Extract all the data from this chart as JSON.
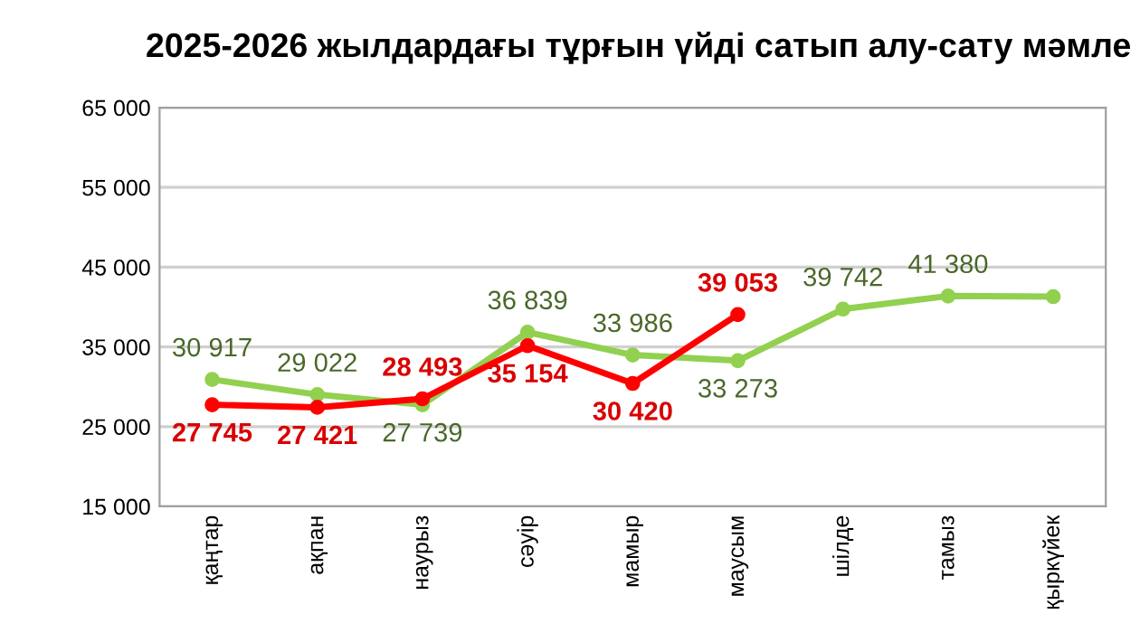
{
  "chart_data": {
    "type": "line",
    "title": "2025-2026 жылдардағы тұрғын үйді сатып алу-сату мәмле",
    "categories": [
      "қаңтар",
      "ақпан",
      "наурыз",
      "сәуір",
      "мамыр",
      "маусым",
      "шілде",
      "тамыз",
      "қыркүйек"
    ],
    "series": [
      {
        "color": "#92d050",
        "values": [
          30917,
          29022,
          27739,
          36839,
          33986,
          33273,
          39742,
          41380,
          41300
        ],
        "value_labels": [
          "30 917",
          "29 022",
          "27 739",
          "36 839",
          "33 986",
          "33 273",
          "39 742",
          "41 380",
          null
        ]
      },
      {
        "color": "#ff0000",
        "values": [
          27745,
          27421,
          28493,
          35154,
          30420,
          39053,
          null,
          null,
          null
        ],
        "value_labels": [
          "27 745",
          "27 421",
          "28 493",
          "35 154",
          "30 420",
          "39 053",
          null,
          null,
          null
        ]
      }
    ],
    "ylim": [
      15000,
      65000
    ],
    "yticks": [
      {
        "value": 15000,
        "label": "15 000"
      },
      {
        "value": 25000,
        "label": "25 000"
      },
      {
        "value": 35000,
        "label": "35 000"
      },
      {
        "value": 45000,
        "label": "45 000"
      },
      {
        "value": 55000,
        "label": "55 000"
      },
      {
        "value": 65000,
        "label": "65 000"
      }
    ],
    "grid": "y",
    "marker": "circle",
    "line_style": "solid",
    "legend": false
  }
}
